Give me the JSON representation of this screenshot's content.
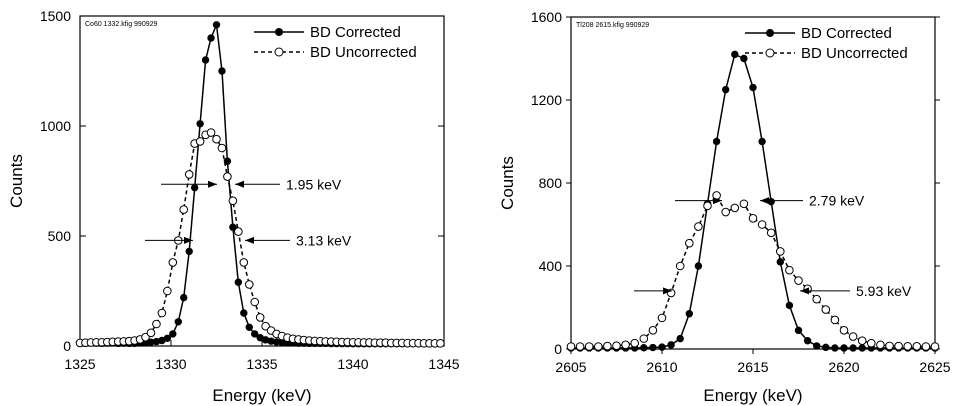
{
  "chart_data": [
    {
      "type": "line",
      "tag": "Co60 1332.kfig 990929",
      "xlabel": "Energy (keV)",
      "ylabel": "Counts",
      "xlim": [
        1325,
        1345
      ],
      "ylim": [
        0,
        1500
      ],
      "xticks": [
        1325,
        1330,
        1335,
        1340,
        1345
      ],
      "yticks": [
        0,
        500,
        1000,
        1500
      ],
      "legend_position": "top-right",
      "series": [
        {
          "name": "BD Corrected",
          "style": "solid",
          "marker": "filled-circle",
          "x": [
            1325.0,
            1325.3,
            1325.6,
            1325.9,
            1326.2,
            1326.5,
            1326.8,
            1327.1,
            1327.4,
            1327.7,
            1328.0,
            1328.3,
            1328.6,
            1328.9,
            1329.2,
            1329.5,
            1329.8,
            1330.1,
            1330.4,
            1330.7,
            1331.0,
            1331.3,
            1331.6,
            1331.9,
            1332.2,
            1332.5,
            1332.8,
            1333.1,
            1333.4,
            1333.7,
            1334.0,
            1334.3,
            1334.6,
            1334.9,
            1335.2,
            1335.5,
            1335.8,
            1336.1,
            1336.4,
            1336.7,
            1337.0,
            1337.3,
            1337.6,
            1337.9,
            1338.2,
            1338.5,
            1338.8,
            1339.1,
            1339.4,
            1339.7,
            1340.0,
            1340.3,
            1340.6,
            1340.9,
            1341.2,
            1341.5,
            1341.8,
            1342.1,
            1342.4,
            1342.7,
            1343.0,
            1343.3,
            1343.6,
            1343.9,
            1344.2,
            1344.5,
            1344.8
          ],
          "y": [
            12,
            13,
            14,
            13,
            12,
            13,
            14,
            12,
            13,
            12,
            12,
            14,
            15,
            17,
            20,
            25,
            35,
            55,
            110,
            220,
            430,
            720,
            1010,
            1300,
            1400,
            1460,
            1250,
            840,
            540,
            290,
            150,
            85,
            55,
            38,
            28,
            22,
            18,
            16,
            15,
            14,
            13,
            13,
            12,
            12,
            12,
            12,
            11,
            11,
            11,
            11,
            10,
            10,
            10,
            10,
            10,
            10,
            10,
            10,
            10,
            10,
            10,
            10,
            10,
            10,
            10,
            10,
            10
          ]
        },
        {
          "name": "BD Uncorrected",
          "style": "dashed",
          "marker": "open-circle",
          "x": [
            1325.0,
            1325.3,
            1325.6,
            1325.9,
            1326.2,
            1326.5,
            1326.8,
            1327.1,
            1327.4,
            1327.7,
            1328.0,
            1328.3,
            1328.6,
            1328.9,
            1329.2,
            1329.5,
            1329.8,
            1330.1,
            1330.4,
            1330.7,
            1331.0,
            1331.3,
            1331.6,
            1331.9,
            1332.2,
            1332.5,
            1332.8,
            1333.1,
            1333.4,
            1333.7,
            1334.0,
            1334.3,
            1334.6,
            1334.9,
            1335.2,
            1335.5,
            1335.8,
            1336.1,
            1336.4,
            1336.7,
            1337.0,
            1337.3,
            1337.6,
            1337.9,
            1338.2,
            1338.5,
            1338.8,
            1339.1,
            1339.4,
            1339.7,
            1340.0,
            1340.3,
            1340.6,
            1340.9,
            1341.2,
            1341.5,
            1341.8,
            1342.1,
            1342.4,
            1342.7,
            1343.0,
            1343.3,
            1343.6,
            1343.9,
            1344.2,
            1344.5,
            1344.8
          ],
          "y": [
            14,
            15,
            16,
            17,
            17,
            18,
            19,
            20,
            21,
            22,
            25,
            30,
            40,
            60,
            100,
            150,
            250,
            380,
            480,
            620,
            780,
            920,
            930,
            960,
            970,
            940,
            900,
            770,
            660,
            520,
            380,
            280,
            200,
            130,
            90,
            70,
            55,
            45,
            38,
            33,
            30,
            27,
            25,
            23,
            22,
            21,
            20,
            19,
            18,
            18,
            17,
            17,
            16,
            16,
            15,
            15,
            15,
            14,
            14,
            14,
            13,
            13,
            13,
            12,
            12,
            12,
            12
          ]
        }
      ],
      "annotations": [
        {
          "text": "1.95 keV",
          "level": 735,
          "left": 1329.0,
          "right": 1331.0
        },
        {
          "text": "3.13 keV",
          "level": 480,
          "left": 1328.2,
          "right": 1334.4
        }
      ]
    },
    {
      "type": "line",
      "tag": "Tl208 2615.kfig 990929",
      "xlabel": "Energy (keV)",
      "ylabel": "Counts",
      "xlim": [
        2605,
        2625
      ],
      "ylim": [
        0,
        1600
      ],
      "xticks": [
        2605,
        2610,
        2615,
        2620,
        2625
      ],
      "yticks": [
        0,
        400,
        800,
        1200,
        1600
      ],
      "legend_position": "top-right",
      "series": [
        {
          "name": "BD Corrected",
          "style": "solid",
          "marker": "filled-circle",
          "x": [
            2605.0,
            2605.5,
            2606.0,
            2606.5,
            2607.0,
            2607.5,
            2608.0,
            2608.5,
            2609.0,
            2609.5,
            2610.0,
            2610.5,
            2611.0,
            2611.5,
            2612.0,
            2612.5,
            2613.0,
            2613.5,
            2614.0,
            2614.5,
            2615.0,
            2615.5,
            2616.0,
            2616.5,
            2617.0,
            2617.5,
            2618.0,
            2618.5,
            2619.0,
            2619.5,
            2620.0,
            2620.5,
            2621.0,
            2621.5,
            2622.0,
            2622.5,
            2623.0,
            2623.5,
            2624.0,
            2624.5,
            2625.0
          ],
          "y": [
            5,
            5,
            5,
            5,
            5,
            5,
            5,
            5,
            6,
            7,
            9,
            20,
            50,
            170,
            400,
            700,
            1000,
            1250,
            1420,
            1400,
            1260,
            1000,
            710,
            420,
            210,
            90,
            40,
            15,
            8,
            5,
            5,
            5,
            5,
            5,
            5,
            5,
            5,
            5,
            5,
            5,
            5
          ]
        },
        {
          "name": "BD Uncorrected",
          "style": "dashed",
          "marker": "open-circle",
          "x": [
            2605.0,
            2605.5,
            2606.0,
            2606.5,
            2607.0,
            2607.5,
            2608.0,
            2608.5,
            2609.0,
            2609.5,
            2610.0,
            2610.5,
            2611.0,
            2611.5,
            2612.0,
            2612.5,
            2613.0,
            2613.5,
            2614.0,
            2614.5,
            2615.0,
            2615.5,
            2616.0,
            2616.5,
            2617.0,
            2617.5,
            2618.0,
            2618.5,
            2619.0,
            2619.5,
            2620.0,
            2620.5,
            2621.0,
            2621.5,
            2622.0,
            2622.5,
            2623.0,
            2623.5,
            2624.0,
            2624.5,
            2625.0
          ],
          "y": [
            12,
            12,
            12,
            12,
            14,
            16,
            20,
            28,
            50,
            90,
            150,
            270,
            400,
            510,
            590,
            690,
            740,
            660,
            680,
            700,
            630,
            600,
            560,
            470,
            380,
            330,
            290,
            240,
            190,
            140,
            90,
            60,
            40,
            28,
            20,
            15,
            14,
            13,
            13,
            12,
            12
          ]
        }
      ],
      "annotations": [
        {
          "text": "2.79 keV",
          "level": 715,
          "left": 2612.4,
          "right": 2616.1
        },
        {
          "text": "5.93 keV",
          "level": 280,
          "left": 2610.2,
          "right": 2617.8
        }
      ]
    }
  ]
}
